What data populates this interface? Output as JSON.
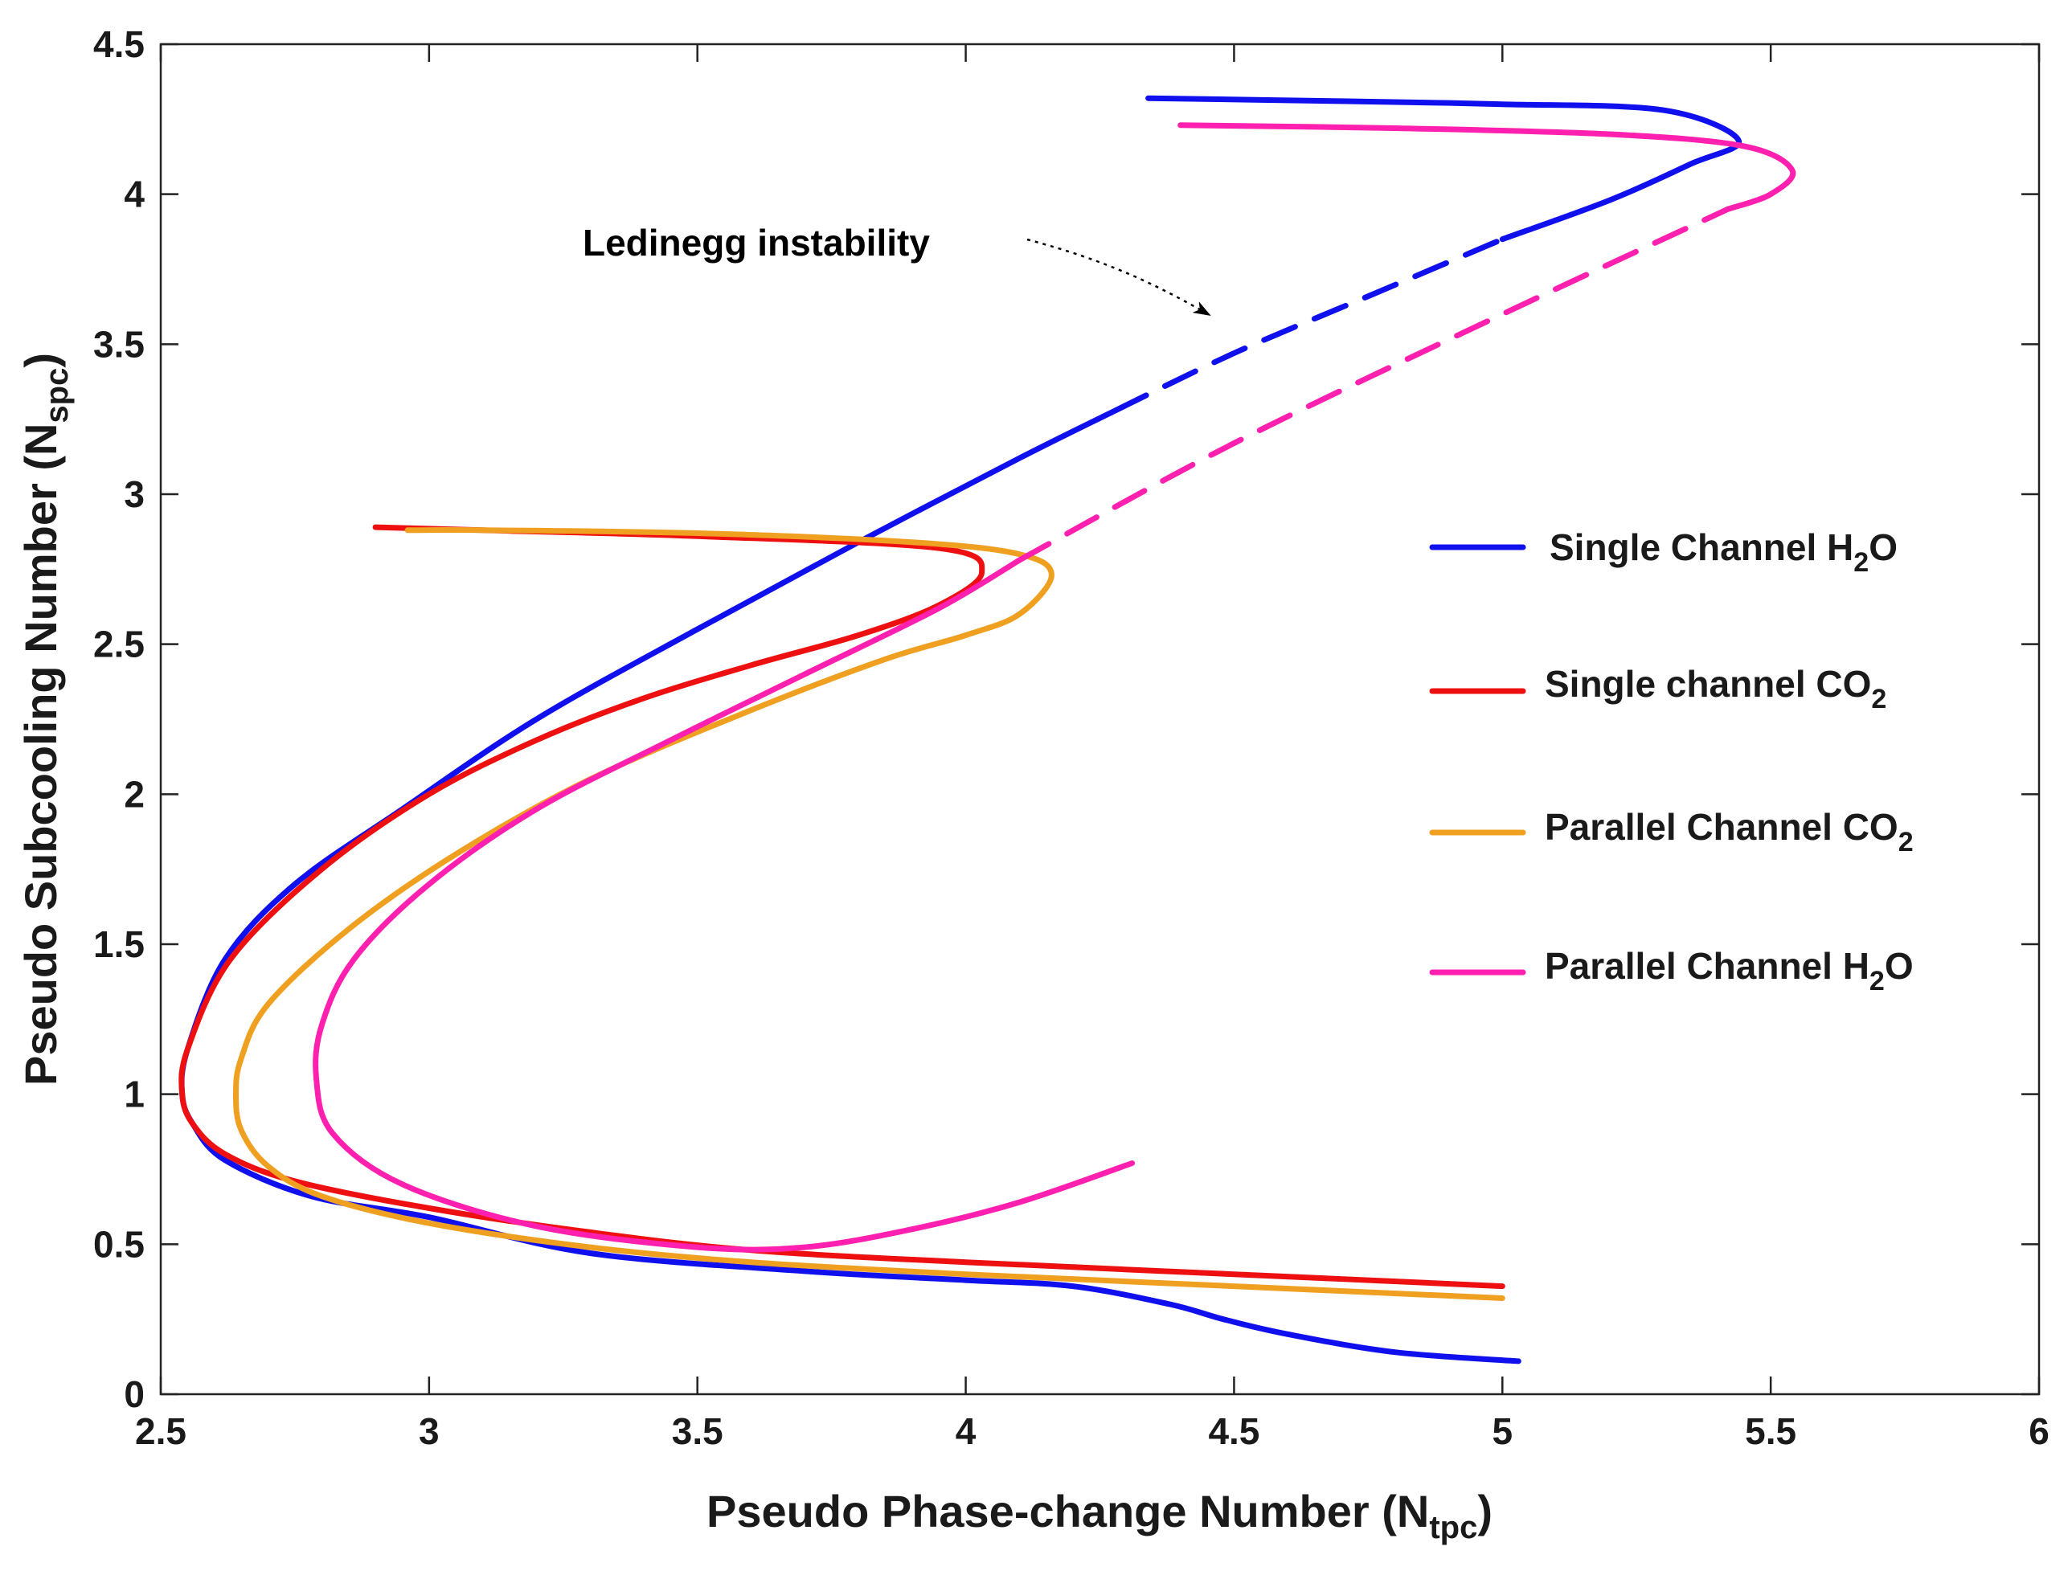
{
  "chart_data": {
    "type": "line",
    "title": "",
    "xlabel": {
      "main": "Pseudo Phase-change Number (N",
      "sub": "tpc",
      "close": ")"
    },
    "ylabel": {
      "main": "Pseudo Subcooling Number (N",
      "sub": "spc",
      "close": ")"
    },
    "xlim": [
      2.5,
      6
    ],
    "ylim": [
      0,
      4.5
    ],
    "xticks": [
      2.5,
      3,
      3.5,
      4,
      4.5,
      5,
      5.5,
      6
    ],
    "yticks": [
      0,
      0.5,
      1,
      1.5,
      2,
      2.5,
      3,
      3.5,
      4,
      4.5
    ],
    "xtick_labels": [
      "2.5",
      "3",
      "3.5",
      "4",
      "4.5",
      "5",
      "5.5",
      "6"
    ],
    "ytick_labels": [
      "0",
      "0.5",
      "1",
      "1.5",
      "2",
      "2.5",
      "3",
      "3.5",
      "4",
      "4.5"
    ],
    "grid": false,
    "legend_position": "right",
    "annotation": {
      "text": "Ledinegg instability",
      "x": 3.72,
      "y": 3.78,
      "target": [
        4.45,
        3.55
      ]
    },
    "series": [
      {
        "name": "Single Channel H2O",
        "label_main": "Single Channel H",
        "label_sub": "2",
        "label_tail": "O",
        "color": "#1010ee",
        "segments": [
          {
            "style": "solid",
            "x": [
              5.03,
              4.8,
              4.6,
              4.48,
              4.38,
              4.2,
              4.0,
              3.7,
              3.3,
              3.0,
              2.78,
              2.62,
              2.56,
              2.54,
              2.55,
              2.62,
              2.75,
              2.95,
              3.2,
              3.5,
              3.8,
              4.1,
              4.28
            ],
            "y": [
              0.11,
              0.14,
              0.2,
              0.25,
              0.3,
              0.36,
              0.38,
              0.41,
              0.47,
              0.59,
              0.66,
              0.78,
              0.9,
              1.0,
              1.15,
              1.45,
              1.7,
              1.95,
              2.25,
              2.55,
              2.84,
              3.12,
              3.28
            ]
          },
          {
            "style": "dashed",
            "x": [
              4.28,
              4.5,
              4.75,
              5.0
            ],
            "y": [
              3.28,
              3.47,
              3.66,
              3.85
            ]
          },
          {
            "style": "solid",
            "x": [
              5.0,
              5.2,
              5.35,
              5.44,
              5.3,
              5.0,
              4.7,
              4.34
            ],
            "y": [
              3.85,
              3.98,
              4.1,
              4.18,
              4.28,
              4.3,
              4.31,
              4.32
            ]
          }
        ]
      },
      {
        "name": "Single channel CO2",
        "label_main": "Single channel CO",
        "label_sub": "2",
        "label_tail": "",
        "color": "#ee1010",
        "segments": [
          {
            "style": "solid",
            "x": [
              5.0,
              4.5,
              4.0,
              3.6,
              3.3,
              3.0,
              2.75,
              2.62,
              2.56,
              2.54,
              2.55,
              2.63,
              2.8,
              3.0,
              3.2,
              3.4,
              3.6,
              3.8,
              3.95,
              4.03,
              3.95,
              3.5,
              3.1,
              2.9
            ],
            "y": [
              0.36,
              0.4,
              0.44,
              0.48,
              0.54,
              0.62,
              0.71,
              0.8,
              0.9,
              1.0,
              1.15,
              1.45,
              1.75,
              2.0,
              2.18,
              2.32,
              2.43,
              2.53,
              2.63,
              2.74,
              2.82,
              2.86,
              2.88,
              2.89
            ]
          }
        ]
      },
      {
        "name": "Parallel Channel CO2",
        "label_main": "Parallel Channel CO",
        "label_sub": "2",
        "label_tail": "",
        "color": "#f0a020",
        "segments": [
          {
            "style": "solid",
            "x": [
              5.0,
              4.5,
              4.0,
              3.6,
              3.3,
              3.0,
              2.8,
              2.7,
              2.65,
              2.64,
              2.65,
              2.7,
              2.85,
              3.05,
              3.3,
              3.6,
              3.85,
              4.0,
              4.1,
              4.16,
              4.1,
              3.9,
              3.5,
              3.1,
              2.96
            ],
            "y": [
              0.32,
              0.36,
              0.4,
              0.44,
              0.49,
              0.57,
              0.66,
              0.76,
              0.88,
              1.0,
              1.12,
              1.3,
              1.55,
              1.8,
              2.05,
              2.28,
              2.45,
              2.53,
              2.6,
              2.73,
              2.8,
              2.84,
              2.87,
              2.88,
              2.88
            ]
          }
        ]
      },
      {
        "name": "Parallel Channel H2O",
        "label_main": "Parallel Channel H",
        "label_sub": "2",
        "label_tail": "O",
        "color": "#ff20b0",
        "segments": [
          {
            "style": "solid",
            "x": [
              4.31,
              4.1,
              3.9,
              3.7,
              3.5,
              3.2,
              2.95,
              2.82,
              2.79,
              2.8,
              2.86,
              3.0,
              3.2,
              3.45,
              3.7,
              3.95,
              4.1
            ],
            "y": [
              0.77,
              0.64,
              0.55,
              0.49,
              0.49,
              0.56,
              0.7,
              0.87,
              1.05,
              1.23,
              1.45,
              1.7,
              1.95,
              2.18,
              2.4,
              2.62,
              2.78
            ]
          },
          {
            "style": "dashed",
            "x": [
              4.1,
              4.5,
              5.0,
              5.42
            ],
            "y": [
              2.78,
              3.17,
              3.6,
              3.95
            ]
          },
          {
            "style": "solid",
            "x": [
              5.42,
              5.5,
              5.54,
              5.45,
              5.2,
              4.8,
              4.4
            ],
            "y": [
              3.95,
              4.0,
              4.08,
              4.16,
              4.2,
              4.22,
              4.23
            ]
          }
        ]
      }
    ]
  }
}
